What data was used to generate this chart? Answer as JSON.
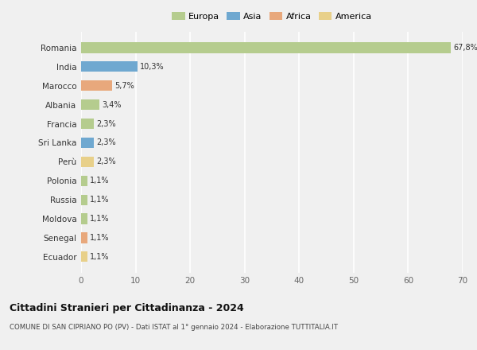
{
  "countries": [
    "Romania",
    "India",
    "Marocco",
    "Albania",
    "Francia",
    "Sri Lanka",
    "Perù",
    "Polonia",
    "Russia",
    "Moldova",
    "Senegal",
    "Ecuador"
  ],
  "values": [
    67.8,
    10.3,
    5.7,
    3.4,
    2.3,
    2.3,
    2.3,
    1.1,
    1.1,
    1.1,
    1.1,
    1.1
  ],
  "labels": [
    "67,8%",
    "10,3%",
    "5,7%",
    "3,4%",
    "2,3%",
    "2,3%",
    "2,3%",
    "1,1%",
    "1,1%",
    "1,1%",
    "1,1%",
    "1,1%"
  ],
  "colors": [
    "#b5cc8e",
    "#6fa8d0",
    "#e8a87c",
    "#b5cc8e",
    "#b5cc8e",
    "#6fa8d0",
    "#e8d08a",
    "#b5cc8e",
    "#b5cc8e",
    "#b5cc8e",
    "#e8a87c",
    "#e8d08a"
  ],
  "legend_labels": [
    "Europa",
    "Asia",
    "Africa",
    "America"
  ],
  "legend_colors": [
    "#b5cc8e",
    "#6fa8d0",
    "#e8a87c",
    "#e8d08a"
  ],
  "title": "Cittadini Stranieri per Cittadinanza - 2024",
  "subtitle": "COMUNE DI SAN CIPRIANO PO (PV) - Dati ISTAT al 1° gennaio 2024 - Elaborazione TUTTITALIA.IT",
  "xlim": [
    0,
    70
  ],
  "xticks": [
    0,
    10,
    20,
    30,
    40,
    50,
    60,
    70
  ],
  "background_color": "#f0f0f0",
  "grid_color": "#ffffff",
  "bar_height": 0.55
}
